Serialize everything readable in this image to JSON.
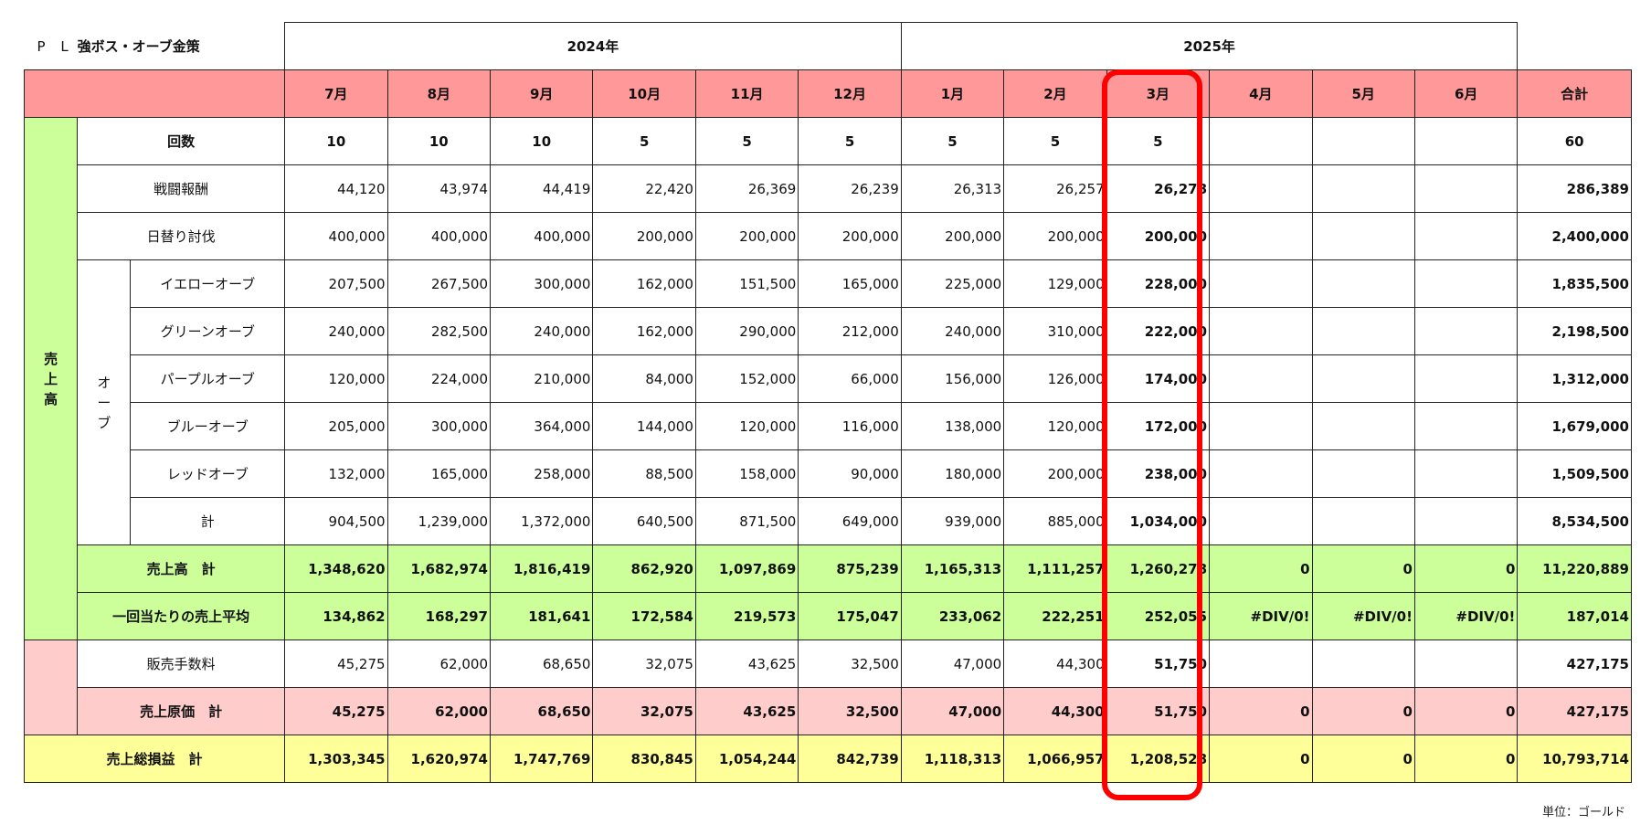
{
  "title": {
    "prefix": "P L",
    "text": "強ボス・オーブ金策"
  },
  "years": [
    "2024年",
    "2025年"
  ],
  "months": [
    "7月",
    "8月",
    "9月",
    "10月",
    "11月",
    "12月",
    "1月",
    "2月",
    "3月",
    "4月",
    "5月",
    "6月"
  ],
  "total_label": "合計",
  "section_sales": "売\n上\n高",
  "section_orb": "オ\nー\nブ",
  "rows": {
    "count": {
      "label": "回数",
      "values": [
        "10",
        "10",
        "10",
        "5",
        "5",
        "5",
        "5",
        "5",
        "5",
        "",
        "",
        ""
      ],
      "total": "60"
    },
    "battle": {
      "label": "戦闘報酬",
      "values": [
        "44,120",
        "43,974",
        "44,419",
        "22,420",
        "26,369",
        "26,239",
        "26,313",
        "26,257",
        "26,278",
        "",
        "",
        ""
      ],
      "total": "286,389"
    },
    "daily": {
      "label": "日替り討伐",
      "values": [
        "400,000",
        "400,000",
        "400,000",
        "200,000",
        "200,000",
        "200,000",
        "200,000",
        "200,000",
        "200,000",
        "",
        "",
        ""
      ],
      "total": "2,400,000"
    },
    "yellow_orb": {
      "label": "イエローオーブ",
      "values": [
        "207,500",
        "267,500",
        "300,000",
        "162,000",
        "151,500",
        "165,000",
        "225,000",
        "129,000",
        "228,000",
        "",
        "",
        ""
      ],
      "total": "1,835,500"
    },
    "green_orb": {
      "label": "グリーンオーブ",
      "values": [
        "240,000",
        "282,500",
        "240,000",
        "162,000",
        "290,000",
        "212,000",
        "240,000",
        "310,000",
        "222,000",
        "",
        "",
        ""
      ],
      "total": "2,198,500"
    },
    "purple_orb": {
      "label": "パープルオーブ",
      "values": [
        "120,000",
        "224,000",
        "210,000",
        "84,000",
        "152,000",
        "66,000",
        "156,000",
        "126,000",
        "174,000",
        "",
        "",
        ""
      ],
      "total": "1,312,000"
    },
    "blue_orb": {
      "label": "ブルーオーブ",
      "values": [
        "205,000",
        "300,000",
        "364,000",
        "144,000",
        "120,000",
        "116,000",
        "138,000",
        "120,000",
        "172,000",
        "",
        "",
        ""
      ],
      "total": "1,679,000"
    },
    "red_orb": {
      "label": "レッドオーブ",
      "values": [
        "132,000",
        "165,000",
        "258,000",
        "88,500",
        "158,000",
        "90,000",
        "180,000",
        "200,000",
        "238,000",
        "",
        "",
        ""
      ],
      "total": "1,509,500"
    },
    "orb_total": {
      "label": "計",
      "values": [
        "904,500",
        "1,239,000",
        "1,372,000",
        "640,500",
        "871,500",
        "649,000",
        "939,000",
        "885,000",
        "1,034,000",
        "",
        "",
        ""
      ],
      "total": "8,534,500"
    },
    "sales_total": {
      "label": "売上高　計",
      "values": [
        "1,348,620",
        "1,682,974",
        "1,816,419",
        "862,920",
        "1,097,869",
        "875,239",
        "1,165,313",
        "1,111,257",
        "1,260,278",
        "0",
        "0",
        "0"
      ],
      "total": "11,220,889"
    },
    "sales_avg": {
      "label": "一回当たりの売上平均",
      "values": [
        "134,862",
        "168,297",
        "181,641",
        "172,584",
        "219,573",
        "175,047",
        "233,062",
        "222,251",
        "252,055",
        "#DIV/0!",
        "#DIV/0!",
        "#DIV/0!"
      ],
      "total": "187,014"
    },
    "fee": {
      "label": "販売手数料",
      "values": [
        "45,275",
        "62,000",
        "68,650",
        "32,075",
        "43,625",
        "32,500",
        "47,000",
        "44,300",
        "51,750",
        "",
        "",
        ""
      ],
      "total": "427,175"
    },
    "cost_total": {
      "label": "売上原価　計",
      "values": [
        "45,275",
        "62,000",
        "68,650",
        "32,075",
        "43,625",
        "32,500",
        "47,000",
        "44,300",
        "51,750",
        "0",
        "0",
        "0"
      ],
      "total": "427,175"
    },
    "gross_profit": {
      "label": "売上総損益　計",
      "values": [
        "1,303,345",
        "1,620,974",
        "1,747,769",
        "830,845",
        "1,054,244",
        "842,739",
        "1,118,313",
        "1,066,957",
        "1,208,528",
        "0",
        "0",
        "0"
      ],
      "total": "10,793,714"
    }
  },
  "unit_note": "単位：ゴールド",
  "colors": {
    "header": "#ff9999",
    "sales_green": "#ccff99",
    "cost_pink": "#ffcccc",
    "profit_yellow": "#ffff99",
    "highlight": "#ff0000"
  }
}
